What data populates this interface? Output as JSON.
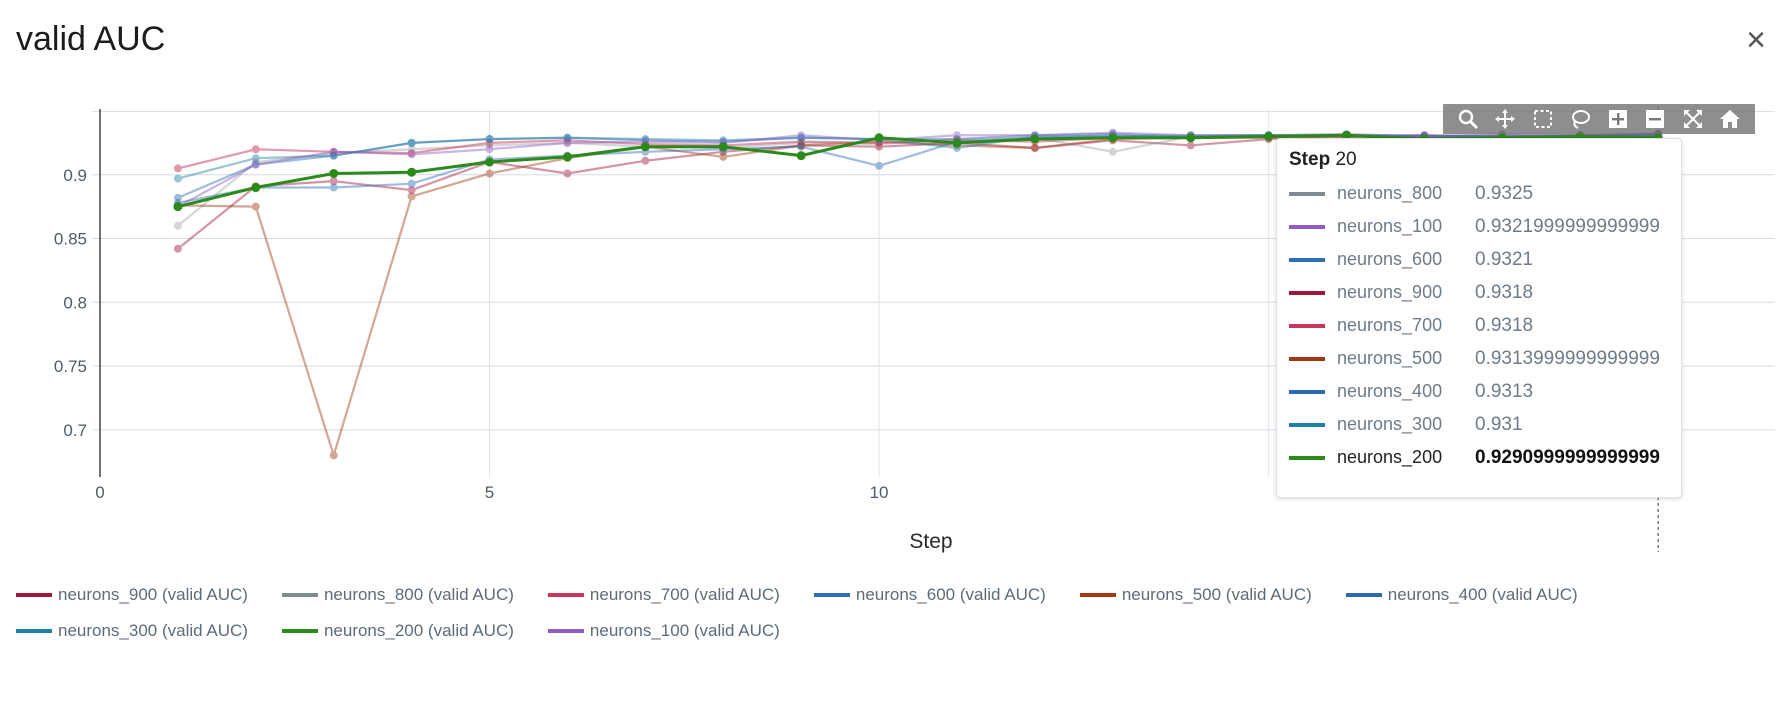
{
  "title": "valid AUC",
  "close_label": "×",
  "toolbar": [
    "zoom-icon",
    "pan-icon",
    "box-select-icon",
    "lasso-select-icon",
    "zoom-in-icon",
    "zoom-out-icon",
    "autoscale-icon",
    "reset-axes-icon"
  ],
  "tooltip": {
    "step_label": "Step",
    "step_value": "20",
    "rows": [
      {
        "name": "neurons_800",
        "value": "0.9325",
        "color": "#7f8c8d",
        "bold": false
      },
      {
        "name": "neurons_100",
        "value": "0.9321999999999999",
        "color": "#8e5cc4",
        "bold": false
      },
      {
        "name": "neurons_600",
        "value": "0.9321",
        "color": "#2d6fb1",
        "bold": false
      },
      {
        "name": "neurons_900",
        "value": "0.9318",
        "color": "#a0163b",
        "bold": false
      },
      {
        "name": "neurons_700",
        "value": "0.9318",
        "color": "#c9365c",
        "bold": false
      },
      {
        "name": "neurons_500",
        "value": "0.9313999999999999",
        "color": "#a03a12",
        "bold": false
      },
      {
        "name": "neurons_400",
        "value": "0.9313",
        "color": "#2c6ab4",
        "bold": false
      },
      {
        "name": "neurons_300",
        "value": "0.931",
        "color": "#1f7fa6",
        "bold": false
      },
      {
        "name": "neurons_200",
        "value": "0.9290999999999999",
        "color": "#2a8a1a",
        "bold": true
      }
    ]
  },
  "legend": [
    {
      "label": "neurons_900 (valid AUC)",
      "color": "#a0163b"
    },
    {
      "label": "neurons_800 (valid AUC)",
      "color": "#7f8c8d"
    },
    {
      "label": "neurons_700 (valid AUC)",
      "color": "#c9365c"
    },
    {
      "label": "neurons_600 (valid AUC)",
      "color": "#2d6fb1"
    },
    {
      "label": "neurons_500 (valid AUC)",
      "color": "#a03a12"
    },
    {
      "label": "neurons_400 (valid AUC)",
      "color": "#2c6ab4"
    },
    {
      "label": "neurons_300 (valid AUC)",
      "color": "#1f7fa6"
    },
    {
      "label": "neurons_200 (valid AUC)",
      "color": "#2a8a1a"
    },
    {
      "label": "neurons_100 (valid AUC)",
      "color": "#8e5cc4"
    }
  ],
  "chart_data": {
    "type": "line",
    "title": "valid AUC",
    "xlabel": "Step",
    "ylabel": "",
    "xlim": [
      0,
      21.5
    ],
    "ylim": [
      0.663,
      0.95
    ],
    "xticks": [
      0,
      5,
      10,
      15,
      20
    ],
    "xtick_labels": [
      "0",
      "5",
      "10",
      "",
      "20"
    ],
    "yticks": [
      0.7,
      0.75,
      0.8,
      0.85,
      0.9
    ],
    "ytick_labels": [
      "0.7",
      "0.75",
      "0.8",
      "0.85",
      "0.9"
    ],
    "grid": true,
    "hover_step": 20,
    "x": [
      1,
      2,
      3,
      4,
      5,
      6,
      7,
      8,
      9,
      10,
      11,
      12,
      13,
      14,
      15,
      16,
      17,
      18,
      19,
      20
    ],
    "series": [
      {
        "name": "neurons_900",
        "color": "#a0163b",
        "opacity": 0.45,
        "highlight": false,
        "values": [
          0.842,
          0.891,
          0.895,
          0.888,
          0.91,
          0.901,
          0.911,
          0.918,
          0.923,
          0.922,
          0.925,
          0.921,
          0.927,
          0.923,
          0.928,
          0.931,
          0.928,
          0.929,
          0.931,
          0.9318
        ]
      },
      {
        "name": "neurons_800",
        "color": "#7f8c8d",
        "opacity": 0.35,
        "highlight": false,
        "values": [
          0.86,
          0.91,
          0.917,
          0.92,
          0.923,
          0.925,
          0.922,
          0.921,
          0.925,
          0.924,
          0.928,
          0.929,
          0.918,
          0.93,
          0.931,
          0.93,
          0.929,
          0.931,
          0.93,
          0.9325
        ]
      },
      {
        "name": "neurons_700",
        "color": "#c9365c",
        "opacity": 0.5,
        "highlight": false,
        "values": [
          0.905,
          0.92,
          0.918,
          0.917,
          0.925,
          0.927,
          0.924,
          0.923,
          0.926,
          0.925,
          0.927,
          0.926,
          0.929,
          0.929,
          0.93,
          0.93,
          0.931,
          0.93,
          0.931,
          0.9318
        ]
      },
      {
        "name": "neurons_600",
        "color": "#2d6fb1",
        "opacity": 0.45,
        "highlight": false,
        "values": [
          0.882,
          0.908,
          0.915,
          0.925,
          0.928,
          0.929,
          0.927,
          0.926,
          0.929,
          0.928,
          0.928,
          0.931,
          0.932,
          0.93,
          0.931,
          0.931,
          0.93,
          0.931,
          0.931,
          0.9321
        ]
      },
      {
        "name": "neurons_500",
        "color": "#a03a12",
        "opacity": 0.45,
        "highlight": false,
        "values": [
          0.876,
          0.875,
          0.68,
          0.883,
          0.901,
          0.913,
          0.922,
          0.914,
          0.923,
          0.926,
          0.923,
          0.921,
          0.928,
          0.929,
          0.929,
          0.929,
          0.93,
          0.93,
          0.93,
          0.9314
        ]
      },
      {
        "name": "neurons_400",
        "color": "#2c6ab4",
        "opacity": 0.45,
        "highlight": false,
        "values": [
          0.878,
          0.89,
          0.89,
          0.893,
          0.912,
          0.915,
          0.918,
          0.92,
          0.922,
          0.907,
          0.926,
          0.929,
          0.931,
          0.929,
          0.93,
          0.931,
          0.931,
          0.929,
          0.93,
          0.9313
        ]
      },
      {
        "name": "neurons_300",
        "color": "#1f7fa6",
        "opacity": 0.45,
        "highlight": false,
        "values": [
          0.897,
          0.913,
          0.915,
          0.925,
          0.928,
          0.929,
          0.928,
          0.927,
          0.929,
          0.928,
          0.921,
          0.93,
          0.93,
          0.931,
          0.931,
          0.931,
          0.93,
          0.93,
          0.93,
          0.931
        ]
      },
      {
        "name": "neurons_100",
        "color": "#8e5cc4",
        "opacity": 0.45,
        "highlight": false,
        "values": [
          0.875,
          0.908,
          0.918,
          0.916,
          0.92,
          0.925,
          0.926,
          0.925,
          0.931,
          0.927,
          0.931,
          0.931,
          0.933,
          0.931,
          0.931,
          0.932,
          0.93,
          0.932,
          0.931,
          0.9322
        ]
      },
      {
        "name": "neurons_200",
        "color": "#2a8a1a",
        "opacity": 1.0,
        "highlight": true,
        "values": [
          0.875,
          0.89,
          0.901,
          0.902,
          0.91,
          0.914,
          0.922,
          0.922,
          0.915,
          0.929,
          0.925,
          0.928,
          0.929,
          0.929,
          0.93,
          0.931,
          0.928,
          0.929,
          0.93,
          0.9291
        ]
      }
    ]
  }
}
